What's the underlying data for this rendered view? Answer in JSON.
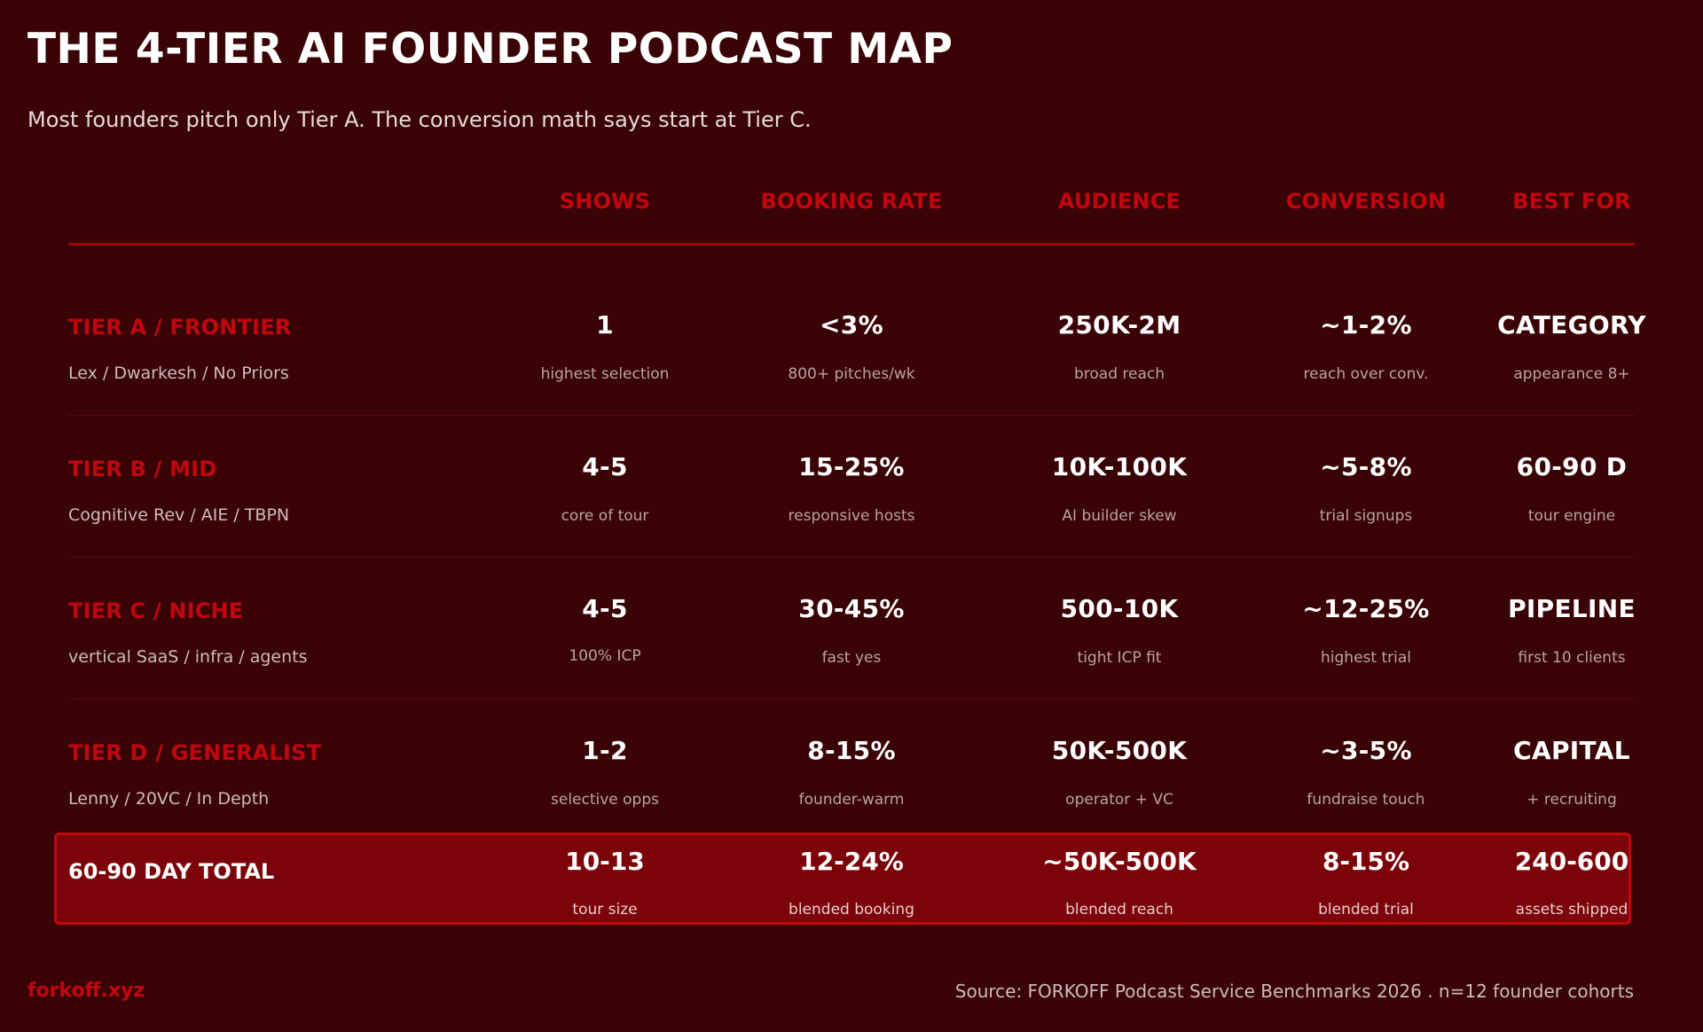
{
  "title": "THE 4-TIER AI FOUNDER PODCAST MAP",
  "subtitle": "Most founders pitch only Tier A. The conversion math says start at Tier C.",
  "columns": [
    "SHOWS",
    "BOOKING RATE",
    "AUDIENCE",
    "CONVERSION",
    "BEST FOR"
  ],
  "tiers": [
    {
      "name": "TIER A / FRONTIER",
      "shows": "Lex / Dwarkesh / No Priors",
      "cells": [
        {
          "value": "1",
          "note": "highest selection"
        },
        {
          "value": "<3%",
          "note": "800+ pitches/wk"
        },
        {
          "value": "250K-2M",
          "note": "broad reach"
        },
        {
          "value": "~1-2%",
          "note": "reach over conv."
        },
        {
          "value": "CATEGORY",
          "note": "appearance 8+"
        }
      ]
    },
    {
      "name": "TIER B / MID",
      "shows": "Cognitive Rev / AIE / TBPN",
      "cells": [
        {
          "value": "4-5",
          "note": "core of tour"
        },
        {
          "value": "15-25%",
          "note": "responsive hosts"
        },
        {
          "value": "10K-100K",
          "note": "AI builder skew"
        },
        {
          "value": "~5-8%",
          "note": "trial signups"
        },
        {
          "value": "60-90 D",
          "note": "tour engine"
        }
      ]
    },
    {
      "name": "TIER C / NICHE",
      "shows": "vertical SaaS / infra / agents",
      "cells": [
        {
          "value": "4-5",
          "note": "100% ICP"
        },
        {
          "value": "30-45%",
          "note": "fast yes"
        },
        {
          "value": "500-10K",
          "note": "tight ICP fit"
        },
        {
          "value": "~12-25%",
          "note": "highest trial"
        },
        {
          "value": "PIPELINE",
          "note": "first 10 clients"
        }
      ]
    },
    {
      "name": "TIER D / GENERALIST",
      "shows": "Lenny / 20VC / In Depth",
      "cells": [
        {
          "value": "1-2",
          "note": "selective opps"
        },
        {
          "value": "8-15%",
          "note": "founder-warm"
        },
        {
          "value": "50K-500K",
          "note": "operator + VC"
        },
        {
          "value": "~3-5%",
          "note": "fundraise touch"
        },
        {
          "value": "CAPITAL",
          "note": "+ recruiting"
        }
      ]
    }
  ],
  "total": {
    "label": "60-90 DAY TOTAL",
    "cells": [
      {
        "value": "10-13",
        "note": "tour size"
      },
      {
        "value": "12-24%",
        "note": "blended booking"
      },
      {
        "value": "~50K-500K",
        "note": "blended reach"
      },
      {
        "value": "8-15%",
        "note": "blended trial"
      },
      {
        "value": "240-600",
        "note": "assets shipped"
      }
    ]
  },
  "footer": {
    "brand": "forkoff.xyz",
    "source": "Source: FORKOFF Podcast Service Benchmarks 2026 . n=12 founder cohorts"
  },
  "colors": {
    "background": "#3a0306",
    "accent": "#c2060f",
    "total_fill": "#7c0309",
    "text": "#ffffff"
  }
}
